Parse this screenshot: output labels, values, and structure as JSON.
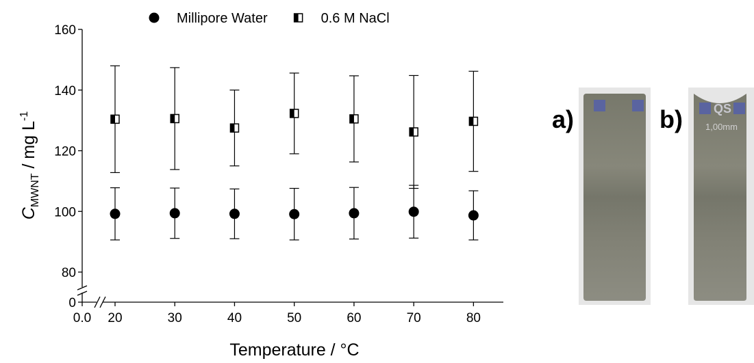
{
  "chart_data": {
    "type": "scatter",
    "x_label": "Temperature / °C",
    "y_label": {
      "symbol": "C",
      "subscript": "MWNT",
      "unit": " / mg L",
      "superscript": "-1"
    },
    "x": [
      20,
      30,
      40,
      50,
      60,
      70,
      80
    ],
    "series": [
      {
        "name": "Millipore Water",
        "color": "#000000",
        "marker": "circle",
        "values": [
          99.2,
          99.4,
          99.2,
          99.1,
          99.4,
          99.9,
          98.7
        ],
        "errors": [
          8.6,
          8.3,
          8.2,
          8.5,
          8.5,
          8.7,
          8.1
        ]
      },
      {
        "name": "0.6 M NaCl",
        "color": "#000000",
        "marker": "half-square",
        "values": [
          130.4,
          130.6,
          127.5,
          132.3,
          130.5,
          126.2,
          129.7
        ],
        "errors": [
          17.6,
          16.8,
          12.5,
          13.3,
          14.2,
          18.6,
          16.5
        ]
      }
    ],
    "xlim": [
      0,
      85
    ],
    "xticks": [
      {
        "value": 0,
        "label": "0.0"
      },
      20,
      30,
      40,
      50,
      60,
      70,
      80
    ],
    "ylim": [
      0,
      160
    ],
    "yticks": [
      0,
      80,
      100,
      120,
      140,
      160
    ],
    "x_axis_break": true,
    "y_axis_break": true,
    "legend": "top",
    "photo_labels": [
      "a)",
      "b)"
    ],
    "photo_b_texts": [
      "QS",
      "1,00mm"
    ]
  }
}
